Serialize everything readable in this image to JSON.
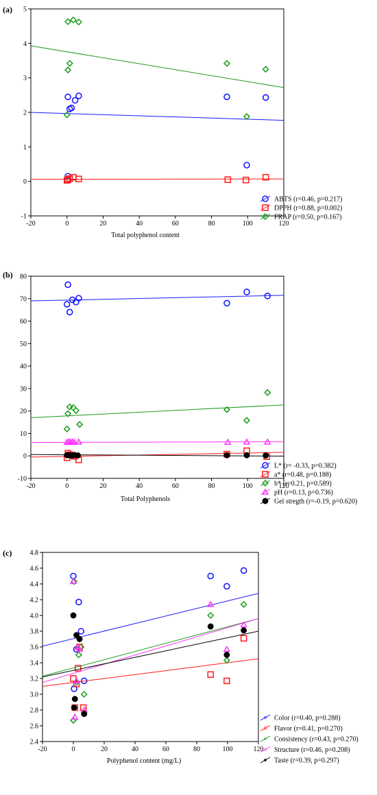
{
  "colors": {
    "blue": "#1a1aff",
    "red": "#ff1a1a",
    "green": "#1a9a1a",
    "magenta": "#ff33ff",
    "black": "#000000"
  },
  "chart_data": [
    {
      "panel_label": "(a)",
      "type": "scatter",
      "xlabel": "Total polyphenol content",
      "ylabel": "",
      "xlim": [
        -20,
        120
      ],
      "ylim": [
        -1,
        5
      ],
      "xticks": [
        -20,
        0,
        20,
        40,
        60,
        80,
        100,
        120
      ],
      "yticks": [
        -1,
        0,
        1,
        2,
        3,
        4,
        5
      ],
      "legend_position": "outside-bottom-right",
      "series": [
        {
          "name": "ABTS (r=0.46, p=0.217)",
          "color": "blue",
          "marker": "circle",
          "x": [
            0.5,
            1.5,
            2.5,
            4.5,
            6.5,
            0.5,
            88.5,
            99.5,
            110
          ],
          "y": [
            2.45,
            2.1,
            2.13,
            2.35,
            2.48,
            0.15,
            2.45,
            0.47,
            2.43
          ],
          "fit": [
            2.0,
            1.77
          ]
        },
        {
          "name": "DPPH (r=0.88, p=0.002)",
          "color": "red",
          "marker": "square",
          "x": [
            0,
            0.5,
            1.5,
            3.5,
            6.5,
            89,
            99,
            110
          ],
          "y": [
            0.03,
            0.05,
            0.08,
            0.12,
            0.07,
            0.05,
            0.04,
            0.12
          ],
          "fit": [
            0.06,
            0.07
          ]
        },
        {
          "name": "FRAP (r=0.50, p=0.167)",
          "color": "green",
          "marker": "diamond",
          "x": [
            0.5,
            3.5,
            6.5,
            0.5,
            1.5,
            0,
            88.5,
            99.5,
            110
          ],
          "y": [
            4.63,
            4.68,
            4.62,
            3.23,
            3.42,
            1.93,
            3.42,
            1.88,
            3.25
          ],
          "fit": [
            3.93,
            2.72
          ]
        }
      ]
    },
    {
      "panel_label": "(b)",
      "type": "scatter",
      "xlabel": "Total Polyphenols",
      "ylabel": "",
      "xlim": [
        -20,
        120
      ],
      "ylim": [
        -10,
        80
      ],
      "xticks": [
        -20,
        0,
        20,
        40,
        60,
        80,
        100,
        120
      ],
      "yticks": [
        -10,
        0,
        10,
        20,
        30,
        40,
        50,
        60,
        70,
        80
      ],
      "legend_position": "outside-bottom-right",
      "series": [
        {
          "name": "L* (r= -0.33, p=0.382)",
          "color": "blue",
          "marker": "circle",
          "x": [
            0.5,
            0,
            1.5,
            3,
            5,
            6.5,
            88.5,
            99.5,
            111
          ],
          "y": [
            76.2,
            67.5,
            64,
            69.5,
            68.5,
            70.2,
            68,
            73,
            71.2
          ],
          "fit": [
            69.0,
            71.5
          ]
        },
        {
          "name": "a* (r=0.48, p=0.188)",
          "color": "red",
          "marker": "square",
          "x": [
            0,
            0.5,
            1.5,
            3,
            4,
            6.5,
            88.5,
            99.5,
            110.5
          ],
          "y": [
            -0.8,
            1.2,
            0.5,
            0.3,
            -0.2,
            -1.8,
            0.8,
            2.3,
            -0.3
          ],
          "fit": [
            -0.5,
            1.6
          ]
        },
        {
          "name": "b* (r=0.21, p=0.589)",
          "color": "green",
          "marker": "diamond",
          "x": [
            0,
            0.5,
            1.5,
            3.5,
            5,
            7,
            88.5,
            99.5,
            111
          ],
          "y": [
            12,
            18.8,
            21.8,
            21.5,
            20.2,
            14,
            20.6,
            15.8,
            28.2
          ],
          "fit": [
            17.0,
            22.7
          ]
        },
        {
          "name": "pH (r=0.13, p=0.736)",
          "color": "magenta",
          "marker": "triangle",
          "x": [
            0,
            1,
            2,
            3,
            4,
            6.5,
            89,
            99.5,
            111
          ],
          "y": [
            6.0,
            6.3,
            6.1,
            6.2,
            6.0,
            6.2,
            6.1,
            6.2,
            6.2
          ],
          "fit": [
            6.0,
            6.3
          ]
        },
        {
          "name": "Gel stregth (r=-0.19, p=0.620)",
          "color": "black",
          "marker": "dot",
          "x": [
            0,
            1,
            2,
            3,
            4,
            6,
            88.5,
            99.5,
            110
          ],
          "y": [
            0.3,
            0.4,
            0.2,
            0.3,
            0.4,
            0.2,
            0.3,
            0.3,
            0.2
          ],
          "fit": [
            0.6,
            -0.1
          ]
        }
      ]
    },
    {
      "panel_label": "(c)",
      "type": "scatter",
      "xlabel": "Polyphenol content (mg/L)",
      "ylabel": "",
      "xlim": [
        -20,
        120
      ],
      "ylim": [
        2.4,
        4.8
      ],
      "xticks": [
        -20,
        0,
        20,
        40,
        60,
        80,
        100,
        120
      ],
      "yticks": [
        "2.4",
        "2.6",
        "2.8",
        "3.0",
        "3.2",
        "3.4",
        "3.6",
        "3.8",
        "4.0",
        "4.2",
        "4.4",
        "4.6",
        "4.8"
      ],
      "legend_position": "outside-bottom-right",
      "series": [
        {
          "name": "Color (r=0.40, p=0.288)",
          "color": "blue",
          "marker": "circle",
          "x": [
            0,
            0.5,
            2,
            3.5,
            5,
            7,
            89,
            99.5,
            110.5
          ],
          "y": [
            4.5,
            3.07,
            3.57,
            4.17,
            3.8,
            3.17,
            4.5,
            4.37,
            4.57
          ],
          "fit": [
            3.61,
            4.28
          ]
        },
        {
          "name": "Flavor (r=0.41, p=0.270)",
          "color": "red",
          "marker": "square",
          "x": [
            0,
            1,
            2,
            3,
            4,
            6.5,
            89,
            99.5,
            110.5
          ],
          "y": [
            3.2,
            2.83,
            3.13,
            3.33,
            3.6,
            2.83,
            3.25,
            3.17,
            3.71
          ],
          "fit": [
            3.1,
            3.45
          ]
        },
        {
          "name": "Consistency (r=0.43, p=0.270)",
          "color": "green",
          "marker": "diamond",
          "x": [
            0,
            0.5,
            2,
            3.5,
            5,
            7,
            89,
            99.5,
            110.5
          ],
          "y": [
            2.67,
            4.43,
            3.15,
            3.5,
            3.6,
            3.0,
            4.0,
            3.43,
            4.14
          ],
          "fit": [
            3.23,
            3.96
          ]
        },
        {
          "name": "Structure (r=0.46, p=0.208)",
          "color": "magenta",
          "marker": "triangle",
          "x": [
            0,
            1,
            2,
            3,
            4,
            7,
            89,
            99.5,
            110.5
          ],
          "y": [
            4.43,
            2.71,
            3.17,
            3.6,
            3.57,
            2.8,
            4.14,
            3.57,
            3.88
          ],
          "fit": [
            3.15,
            3.96
          ]
        },
        {
          "name": "Taste (r=0.39, p=0.297)",
          "color": "black",
          "marker": "dot",
          "x": [
            0,
            0.5,
            1,
            2,
            4,
            7,
            89,
            99.5,
            110.5
          ],
          "y": [
            4.0,
            2.83,
            2.94,
            3.75,
            3.7,
            2.75,
            3.86,
            3.5,
            3.81
          ],
          "fit": [
            3.22,
            3.8
          ]
        }
      ]
    }
  ]
}
